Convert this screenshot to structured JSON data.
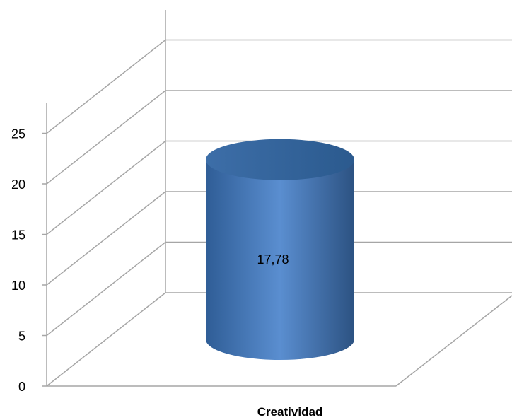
{
  "chart_data": {
    "type": "bar",
    "categories": [
      "Creatividad"
    ],
    "values": [
      17.78
    ],
    "data_labels": [
      "17,78"
    ],
    "ylim": [
      0,
      25
    ],
    "yticks": [
      "0",
      "5",
      "10",
      "15",
      "20",
      "25"
    ],
    "grid": true,
    "legend": "none",
    "bar_shape": "cylinder",
    "colors": {
      "bar": "#4f81bd",
      "bar_dark": "#2c5282",
      "grid": "#a6a6a6"
    }
  }
}
